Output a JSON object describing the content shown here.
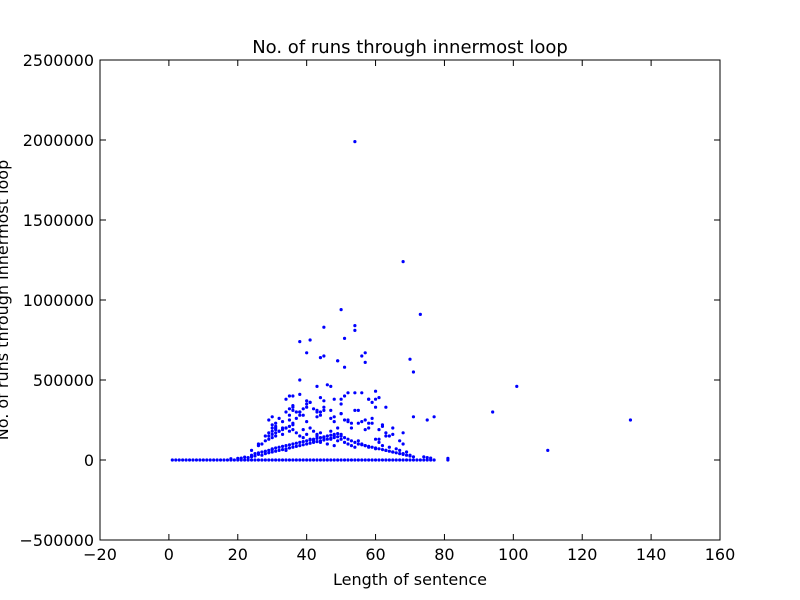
{
  "chart_data": {
    "type": "scatter",
    "title": "No. of runs through innermost loop",
    "xlabel": "Length of sentence",
    "ylabel": "No. of runs through innermost loop",
    "xlim": [
      -20,
      160
    ],
    "ylim": [
      -500000,
      2500000
    ],
    "xticks": [
      -20,
      0,
      20,
      40,
      60,
      80,
      100,
      120,
      140,
      160
    ],
    "yticks": [
      -500000,
      0,
      500000,
      1000000,
      1500000,
      2000000,
      2500000
    ],
    "xtick_labels": [
      "−20",
      "0",
      "20",
      "40",
      "60",
      "80",
      "100",
      "120",
      "140",
      "160"
    ],
    "ytick_labels": [
      "−500000",
      "0",
      "500000",
      "1000000",
      "1500000",
      "2000000",
      "2500000"
    ],
    "grid": false,
    "marker_color": "#0000ff",
    "series": [
      {
        "name": "runs",
        "x": [
          1,
          2,
          3,
          4,
          5,
          6,
          7,
          8,
          9,
          10,
          11,
          12,
          13,
          14,
          15,
          16,
          17,
          18,
          19,
          20,
          21,
          22,
          23,
          24,
          25,
          26,
          27,
          28,
          29,
          30,
          31,
          32,
          33,
          34,
          35,
          36,
          37,
          38,
          39,
          40,
          41,
          42,
          43,
          44,
          45,
          46,
          47,
          48,
          49,
          50,
          51,
          52,
          53,
          54,
          55,
          56,
          57,
          58,
          59,
          60,
          61,
          62,
          63,
          64,
          65,
          66,
          67,
          68,
          69,
          70,
          71,
          72,
          73,
          74,
          75,
          76,
          77,
          81,
          18,
          20,
          21,
          22,
          23,
          24,
          24,
          25,
          25,
          26,
          26,
          27,
          27,
          28,
          28,
          29,
          29,
          30,
          30,
          30,
          31,
          31,
          32,
          32,
          33,
          33,
          34,
          34,
          34,
          35,
          35,
          36,
          36,
          37,
          37,
          38,
          38,
          39,
          39,
          40,
          40,
          41,
          41,
          42,
          42,
          43,
          43,
          44,
          44,
          45,
          45,
          46,
          46,
          47,
          47,
          48,
          48,
          49,
          49,
          50,
          51,
          52,
          53,
          54,
          55,
          56,
          57,
          58,
          59,
          60,
          61,
          62,
          63,
          64,
          65,
          66,
          67,
          68,
          69,
          70,
          71,
          74,
          75,
          76,
          81,
          24,
          26,
          27,
          28,
          29,
          29,
          30,
          30,
          31,
          31,
          32,
          33,
          33,
          34,
          35,
          35,
          36,
          36,
          37,
          38,
          39,
          40,
          41,
          42,
          43,
          44,
          45,
          46,
          47,
          48,
          49,
          50,
          51,
          52,
          53,
          54,
          55,
          56,
          57,
          58,
          60,
          61,
          62,
          63,
          64,
          65,
          66,
          67,
          68,
          69,
          70,
          26,
          28,
          29,
          30,
          30,
          31,
          31,
          32,
          33,
          34,
          35,
          36,
          37,
          38,
          39,
          40,
          41,
          42,
          43,
          44,
          45,
          47,
          48,
          49,
          50,
          52,
          53,
          55,
          57,
          58,
          61,
          62,
          63,
          64,
          65,
          29,
          30,
          31,
          32,
          34,
          35,
          36,
          37,
          39,
          40,
          42,
          43,
          44,
          45,
          47,
          50,
          51,
          53,
          56,
          58,
          60,
          62,
          63,
          67,
          68,
          30,
          31,
          33,
          35,
          36,
          38,
          40,
          41,
          43,
          45,
          48,
          50,
          52,
          55,
          57,
          59,
          61,
          65,
          68,
          71,
          75,
          36,
          38,
          41,
          44,
          46,
          47,
          48,
          50,
          52,
          54,
          58,
          59,
          60,
          63,
          34,
          36,
          38,
          40,
          43,
          45,
          49,
          51,
          56,
          60,
          35,
          38,
          41,
          44,
          49,
          54,
          57,
          94,
          77,
          101,
          110,
          134,
          71,
          38,
          39,
          40,
          43,
          44,
          45,
          47,
          48,
          50,
          51,
          54,
          56,
          58,
          59,
          60,
          61,
          68,
          70,
          73,
          45,
          54,
          50,
          51,
          57,
          54
        ],
        "y": [
          0,
          0,
          0,
          0,
          0,
          0,
          0,
          0,
          0,
          0,
          0,
          0,
          0,
          0,
          0,
          0,
          0,
          0,
          0,
          0,
          0,
          0,
          0,
          0,
          0,
          0,
          0,
          0,
          0,
          0,
          0,
          0,
          0,
          0,
          0,
          0,
          0,
          0,
          0,
          0,
          0,
          0,
          0,
          0,
          0,
          0,
          0,
          0,
          0,
          0,
          0,
          0,
          0,
          0,
          0,
          0,
          0,
          0,
          0,
          0,
          0,
          0,
          0,
          0,
          0,
          0,
          0,
          0,
          0,
          0,
          0,
          0,
          0,
          0,
          0,
          0,
          0,
          0,
          8000,
          10000,
          12000,
          18000,
          15000,
          20000,
          30000,
          25000,
          40000,
          35000,
          45000,
          30000,
          50000,
          40000,
          55000,
          45000,
          60000,
          50000,
          65000,
          70000,
          55000,
          75000,
          60000,
          80000,
          65000,
          85000,
          70000,
          90000,
          60000,
          75000,
          95000,
          80000,
          100000,
          85000,
          105000,
          90000,
          110000,
          95000,
          115000,
          100000,
          120000,
          105000,
          125000,
          110000,
          130000,
          115000,
          135000,
          120000,
          140000,
          125000,
          145000,
          130000,
          150000,
          135000,
          155000,
          140000,
          160000,
          145000,
          165000,
          150000,
          140000,
          130000,
          120000,
          110000,
          100000,
          95000,
          90000,
          85000,
          80000,
          75000,
          70000,
          65000,
          60000,
          55000,
          50000,
          45000,
          40000,
          35000,
          30000,
          25000,
          20000,
          20000,
          15000,
          12000,
          10000,
          60000,
          90000,
          100000,
          120000,
          130000,
          150000,
          160000,
          140000,
          170000,
          150000,
          180000,
          190000,
          160000,
          200000,
          210000,
          180000,
          190000,
          220000,
          170000,
          150000,
          140000,
          160000,
          130000,
          120000,
          150000,
          110000,
          140000,
          100000,
          130000,
          90000,
          120000,
          130000,
          110000,
          100000,
          90000,
          80000,
          120000,
          100000,
          90000,
          80000,
          70000,
          110000,
          90000,
          60000,
          80000,
          50000,
          70000,
          60000,
          40000,
          50000,
          30000,
          100000,
          150000,
          170000,
          200000,
          220000,
          190000,
          210000,
          180000,
          240000,
          200000,
          250000,
          230000,
          260000,
          280000,
          190000,
          240000,
          200000,
          180000,
          160000,
          170000,
          140000,
          180000,
          150000,
          200000,
          160000,
          240000,
          200000,
          230000,
          190000,
          230000,
          130000,
          220000,
          170000,
          150000,
          160000,
          250000,
          270000,
          230000,
          260000,
          300000,
          320000,
          340000,
          300000,
          280000,
          350000,
          320000,
          300000,
          280000,
          310000,
          260000,
          290000,
          250000,
          230000,
          240000,
          200000,
          130000,
          210000,
          150000,
          120000,
          100000,
          180000,
          200000,
          200000,
          280000,
          310000,
          300000,
          330000,
          360000,
          310000,
          330000,
          270000,
          290000,
          250000,
          310000,
          250000,
          230000,
          190000,
          200000,
          170000,
          270000,
          250000,
          400000,
          410000,
          360000,
          390000,
          470000,
          460000,
          380000,
          350000,
          420000,
          420000,
          380000,
          360000,
          380000,
          330000,
          380000,
          330000,
          500000,
          670000,
          460000,
          650000,
          620000,
          580000,
          650000,
          430000,
          400000,
          740000,
          750000,
          640000,
          620000,
          810000,
          610000,
          300000,
          270000,
          460000,
          60000,
          250000,
          550000,
          300000,
          320000,
          370000,
          270000,
          300000,
          370000,
          310000,
          240000,
          380000,
          400000,
          310000,
          420000,
          380000,
          260000,
          330000,
          390000,
          1240000,
          630000,
          910000,
          830000,
          840000,
          940000,
          760000,
          670000,
          1990000
        ]
      }
    ]
  }
}
